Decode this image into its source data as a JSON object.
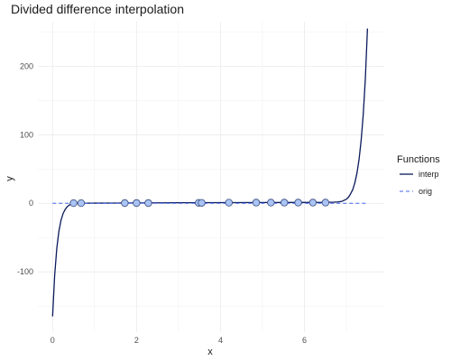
{
  "chart_data": {
    "type": "line",
    "title": "Divided difference interpolation",
    "xlabel": "x",
    "ylabel": "y",
    "xlim": [
      -0.35,
      7.9
    ],
    "ylim": [
      -188,
      265
    ],
    "x_ticks": [
      0,
      2,
      4,
      6
    ],
    "y_ticks": [
      -100,
      0,
      100,
      200
    ],
    "grid": true,
    "legend": {
      "title": "Functions",
      "position": "right",
      "entries": [
        {
          "label": "interp",
          "style": "solid",
          "color": "#0b1a5c"
        },
        {
          "label": "orig",
          "style": "dashed",
          "color": "#4466ee"
        }
      ]
    },
    "series": [
      {
        "name": "interp",
        "style": "solid",
        "color": "#0b1a5c",
        "x": [
          0.0,
          0.05,
          0.1,
          0.15,
          0.2,
          0.25,
          0.3,
          0.35,
          0.4,
          0.45,
          0.5,
          0.6,
          0.7,
          0.8,
          1.0,
          2.0,
          3.0,
          4.0,
          5.0,
          6.0,
          6.5,
          6.7,
          6.8,
          6.9,
          7.0,
          7.05,
          7.1,
          7.15,
          7.2,
          7.25,
          7.3,
          7.35,
          7.4,
          7.45,
          7.5
        ],
        "y": [
          -165,
          -105,
          -66,
          -41,
          -25,
          -15,
          -9,
          -5,
          -2.5,
          -1,
          -0.2,
          0,
          0,
          0.1,
          0.2,
          0.5,
          0.8,
          1.0,
          1.1,
          1.2,
          1.3,
          1.6,
          2,
          3,
          6,
          9,
          14,
          20,
          30,
          44,
          64,
          92,
          130,
          182,
          255
        ]
      },
      {
        "name": "orig",
        "style": "dashed",
        "color": "#4466ee",
        "x": [
          0.0,
          7.5
        ],
        "y": [
          0,
          0
        ]
      }
    ],
    "points": {
      "color": "#a9c4f5",
      "stroke": "#3a4a7a",
      "x": [
        0.5,
        0.68,
        1.72,
        2.0,
        2.28,
        3.48,
        3.55,
        4.2,
        4.85,
        5.2,
        5.52,
        5.85,
        6.2,
        6.5
      ],
      "y": [
        0.2,
        0.2,
        0.3,
        0.3,
        0.3,
        0.6,
        0.6,
        0.9,
        1.0,
        1.0,
        1.0,
        1.0,
        1.0,
        1.0
      ]
    }
  }
}
